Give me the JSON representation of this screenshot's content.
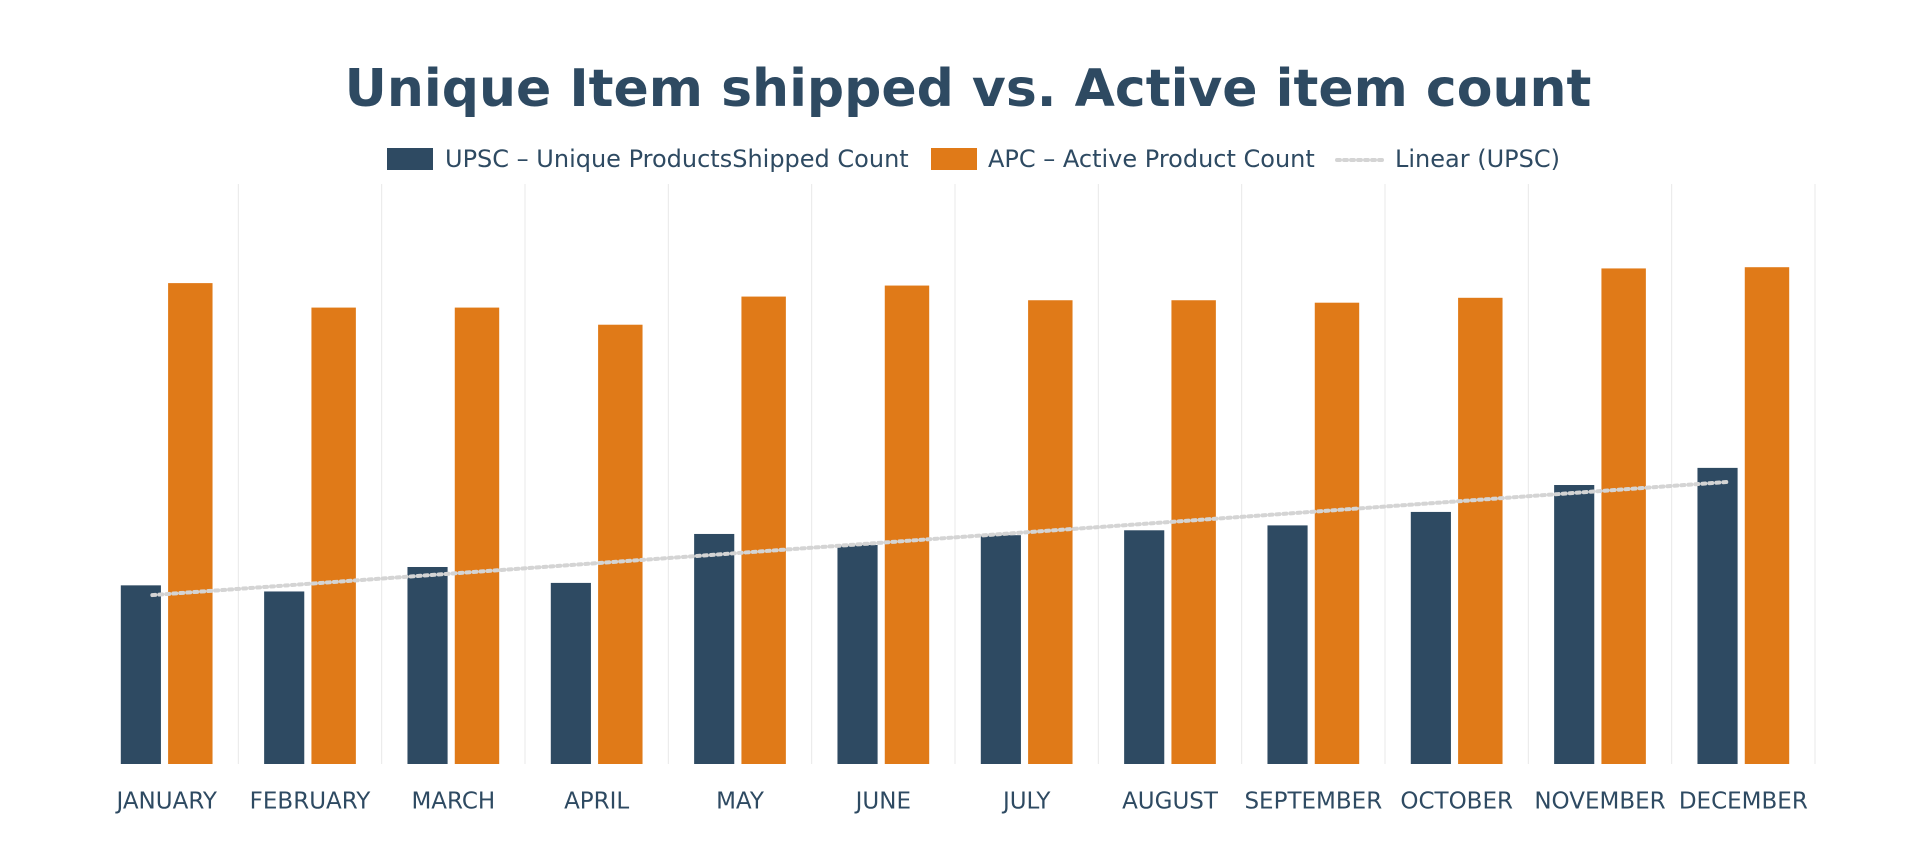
{
  "chart_data": {
    "type": "bar",
    "title": "Unique Item shipped vs. Active item count",
    "categories": [
      "JANUARY",
      "FEBRUARY",
      "MARCH",
      "APRIL",
      "MAY",
      "JUNE",
      "JULY",
      "AUGUST",
      "SEPTEMBER",
      "OCTOBER",
      "NOVEMBER",
      "DECEMBER"
    ],
    "series": [
      {
        "name": "UPSC – Unique ProductsShipped Count",
        "color": "#2e4a62",
        "values": [
          146,
          141,
          161,
          148,
          188,
          179,
          187,
          191,
          195,
          206,
          228,
          242
        ]
      },
      {
        "name": "APC – Active Product Count",
        "color": "#e07a18",
        "values": [
          393,
          373,
          373,
          359,
          382,
          391,
          379,
          379,
          377,
          381,
          405,
          406
        ]
      }
    ],
    "trendline": {
      "name": "Linear (UPSC)",
      "color": "#d4d4d4"
    },
    "ylim": [
      0,
      474
    ]
  }
}
